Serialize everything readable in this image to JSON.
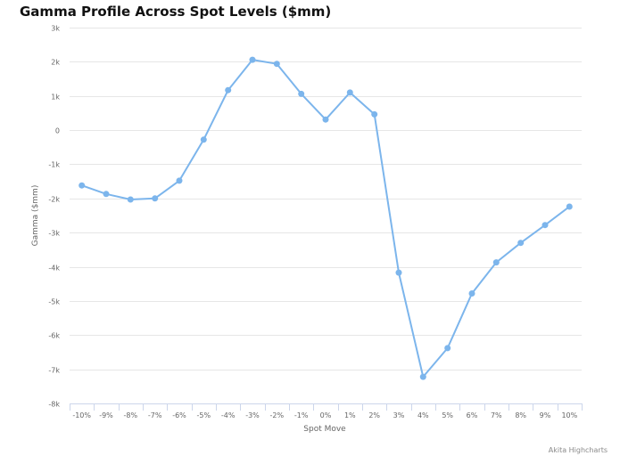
{
  "chart_data": {
    "type": "line",
    "title": "Gamma Profile Across Spot Levels ($mm)",
    "xlabel": "Spot Move",
    "ylabel": "Gamma ($mm)",
    "credit": "Akita Highcharts",
    "categories": [
      "-10%",
      "-9%",
      "-8%",
      "-7%",
      "-6%",
      "-5%",
      "-4%",
      "-3%",
      "-2%",
      "-1%",
      "0%",
      "1%",
      "2%",
      "3%",
      "4%",
      "5%",
      "6%",
      "7%",
      "8%",
      "9%",
      "10%"
    ],
    "series": [
      {
        "values": [
          -1620,
          -1870,
          -2030,
          -2000,
          -1480,
          -280,
          1170,
          2060,
          1940,
          1060,
          310,
          1100,
          460,
          -4170,
          -7220,
          -6380,
          -4780,
          -3870,
          -3300,
          -2780,
          -2240
        ]
      }
    ],
    "ylim": [
      -8000,
      3000
    ],
    "yticks": [
      -8000,
      -7000,
      -6000,
      -5000,
      -4000,
      -3000,
      -2000,
      -1000,
      0,
      1000,
      2000,
      3000
    ],
    "ytick_labels": [
      "-8k",
      "-7k",
      "-6k",
      "-5k",
      "-4k",
      "-3k",
      "-2k",
      "-1k",
      "0",
      "1k",
      "2k",
      "3k"
    ],
    "grid": true,
    "colors": {
      "line": "#7cb5ec",
      "grid": "#e6e6e6",
      "axis": "#ccd6eb"
    }
  }
}
